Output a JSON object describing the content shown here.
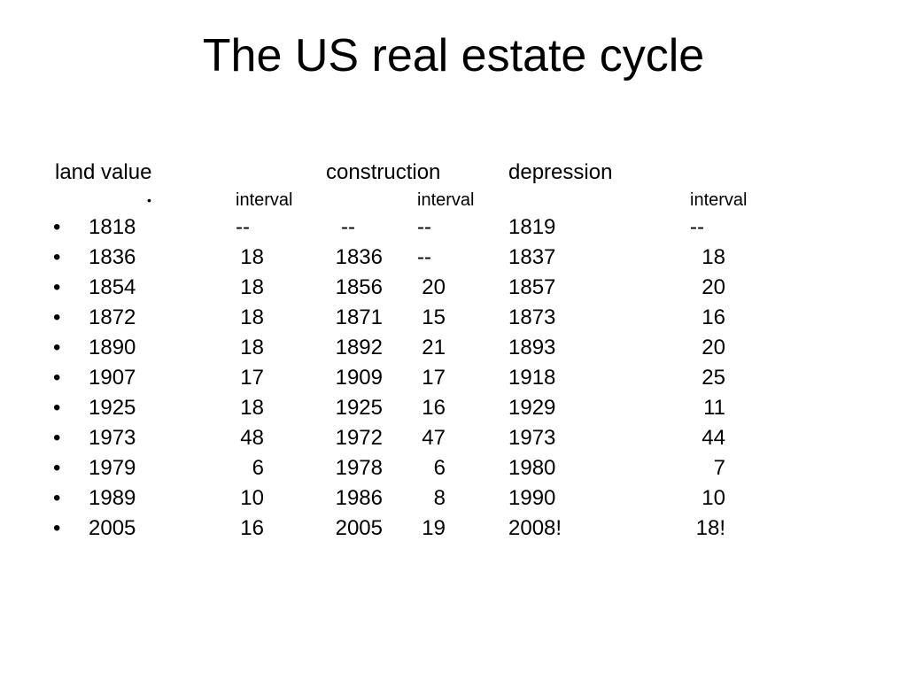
{
  "slide": {
    "title": "The US real estate cycle"
  },
  "table": {
    "headers": {
      "land_value": "land value",
      "construction": "construction",
      "depression": "depression"
    },
    "subheader": {
      "bullet": "•",
      "land_interval": "interval",
      "construction_interval": "interval",
      "depression_interval": "interval"
    },
    "bullet": "•",
    "rows": [
      {
        "land_year": "1818",
        "land_interval": "--",
        "construction_year": "--",
        "construction_interval": "--",
        "depression_year": "1819",
        "depression_interval": "--"
      },
      {
        "land_year": "1836",
        "land_interval": "18",
        "construction_year": "1836",
        "construction_interval": "--",
        "depression_year": "1837",
        "depression_interval": "18"
      },
      {
        "land_year": "1854",
        "land_interval": "18",
        "construction_year": "1856",
        "construction_interval": "20",
        "depression_year": "1857",
        "depression_interval": "20"
      },
      {
        "land_year": "1872",
        "land_interval": "18",
        "construction_year": "1871",
        "construction_interval": "15",
        "depression_year": "1873",
        "depression_interval": "16"
      },
      {
        "land_year": "1890",
        "land_interval": "18",
        "construction_year": "1892",
        "construction_interval": "21",
        "depression_year": "1893",
        "depression_interval": "20"
      },
      {
        "land_year": "1907",
        "land_interval": "17",
        "construction_year": "1909",
        "construction_interval": "17",
        "depression_year": "1918",
        "depression_interval": "25"
      },
      {
        "land_year": "1925",
        "land_interval": "18",
        "construction_year": "1925",
        "construction_interval": "16",
        "depression_year": "1929",
        "depression_interval": "11"
      },
      {
        "land_year": "1973",
        "land_interval": "48",
        "construction_year": "1972",
        "construction_interval": "47",
        "depression_year": "1973",
        "depression_interval": "44"
      },
      {
        "land_year": "1979",
        "land_interval": "6",
        "construction_year": "1978",
        "construction_interval": "6",
        "depression_year": "1980",
        "depression_interval": "7"
      },
      {
        "land_year": "1989",
        "land_interval": "10",
        "construction_year": "1986",
        "construction_interval": "8",
        "depression_year": "1990",
        "depression_interval": "10"
      },
      {
        "land_year": "2005",
        "land_interval": "16",
        "construction_year": "2005",
        "construction_interval": "19",
        "depression_year": "2008!",
        "depression_interval": "18!"
      }
    ]
  }
}
